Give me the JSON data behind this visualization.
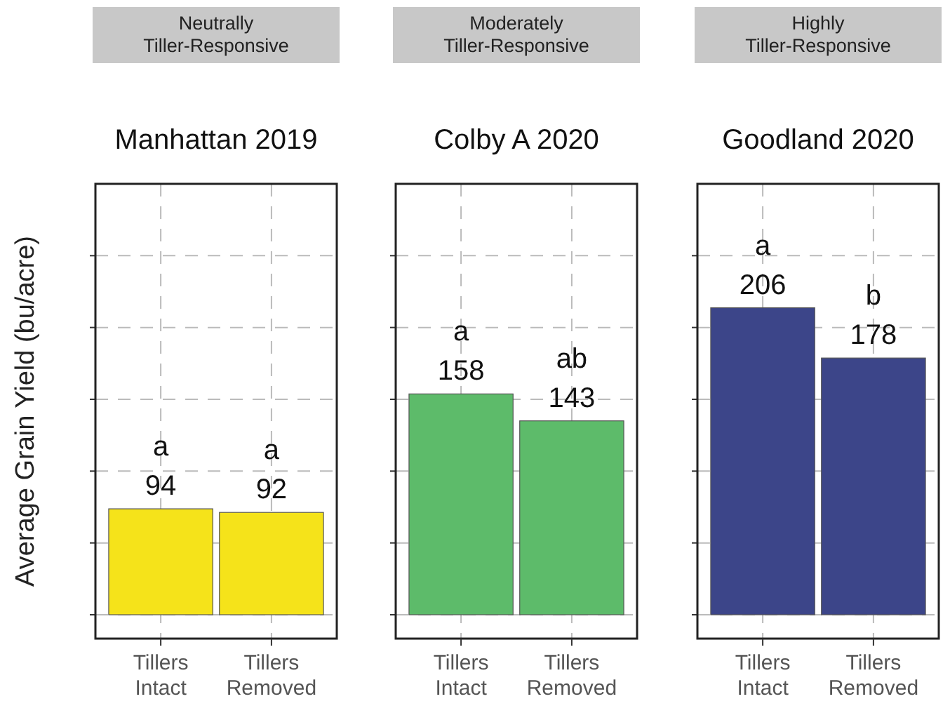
{
  "chart_data": [
    {
      "type": "bar",
      "subtitle": "Neutrally\nTiller-Responsive",
      "title": "Manhattan 2019",
      "ylabel": "Average Grain Yield (bu/acre)",
      "categories": [
        "Tillers\nIntact",
        "Tillers\nRemoved"
      ],
      "values": [
        94,
        92
      ],
      "color": "#f5e31a",
      "data_labels": true,
      "ylim": [
        35,
        275
      ],
      "yticks": [
        {
          "value": 35,
          "label": null
        },
        {
          "value": 75,
          "label": null
        },
        {
          "value": 115,
          "label": null
        },
        {
          "value": 155,
          "label": null
        },
        {
          "value": 195,
          "label": null
        },
        {
          "value": 235,
          "label": null
        }
      ],
      "tick_labels": "x",
      "grid": true,
      "annotations": [
        {
          "text": "a",
          "x": "Tillers\nIntact",
          "y": 94
        },
        {
          "text": "a",
          "x": "Tillers\nRemoved",
          "y": 92
        }
      ]
    },
    {
      "type": "bar",
      "subtitle": "Moderately\nTiller-Responsive",
      "title": "Colby A 2020",
      "categories": [
        "Tillers\nIntact",
        "Tillers\nRemoved"
      ],
      "values": [
        158,
        143
      ],
      "color": "#5dbb6a",
      "data_labels": true,
      "ylim": [
        35,
        275
      ],
      "yticks": [
        {
          "value": 35,
          "label": null
        },
        {
          "value": 75,
          "label": null
        },
        {
          "value": 115,
          "label": null
        },
        {
          "value": 155,
          "label": null
        },
        {
          "value": 195,
          "label": null
        },
        {
          "value": 235,
          "label": null
        }
      ],
      "tick_labels": "x",
      "grid": true,
      "annotations": [
        {
          "text": "a",
          "x": "Tillers\nIntact",
          "y": 158
        },
        {
          "text": "ab",
          "x": "Tillers\nRemoved",
          "y": 143
        }
      ]
    },
    {
      "type": "bar",
      "subtitle": "Highly\nTiller-Responsive",
      "title": "Goodland 2020",
      "categories": [
        "Tillers\nIntact",
        "Tillers\nRemoved"
      ],
      "values": [
        206,
        178
      ],
      "color": "#3c4589",
      "data_labels": true,
      "ylim": [
        35,
        275
      ],
      "yticks": [
        {
          "value": 35,
          "label": null
        },
        {
          "value": 75,
          "label": null
        },
        {
          "value": 115,
          "label": null
        },
        {
          "value": 155,
          "label": null
        },
        {
          "value": 195,
          "label": null
        },
        {
          "value": 235,
          "label": null
        }
      ],
      "tick_labels": "x",
      "grid": true,
      "annotations": [
        {
          "text": "a",
          "x": "Tillers\nIntact",
          "y": 206
        },
        {
          "text": "b",
          "x": "Tillers\nRemoved",
          "y": 178
        }
      ]
    }
  ]
}
